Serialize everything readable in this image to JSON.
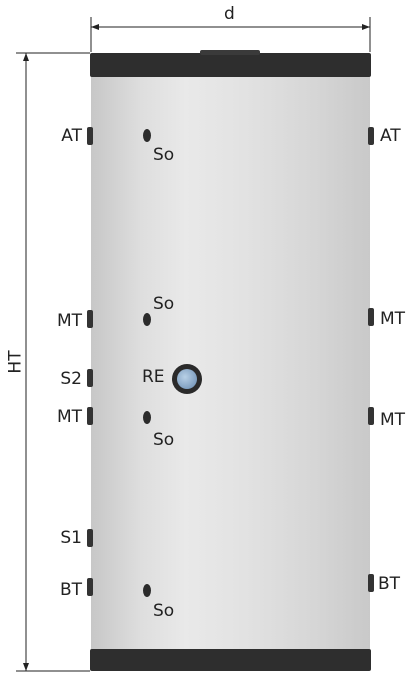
{
  "dimensions": {
    "diameter_label": "d",
    "height_label": "HT"
  },
  "labels": {
    "left": {
      "at": "AT",
      "mt_upper": "MT",
      "s2": "S2",
      "mt_lower": "MT",
      "s1": "S1",
      "bt": "BT"
    },
    "right": {
      "at": "AT",
      "mt_upper": "MT",
      "mt_lower": "MT",
      "bt": "BT"
    },
    "sensors": {
      "so_1": "So",
      "so_2": "So",
      "so_3": "So",
      "so_4": "So"
    },
    "re": "RE"
  },
  "colors": {
    "tank_body": "#dcdcdc",
    "tank_caps": "#2e2e2e",
    "re_port": "#8fb0cf",
    "dimension_lines": "#222222"
  }
}
